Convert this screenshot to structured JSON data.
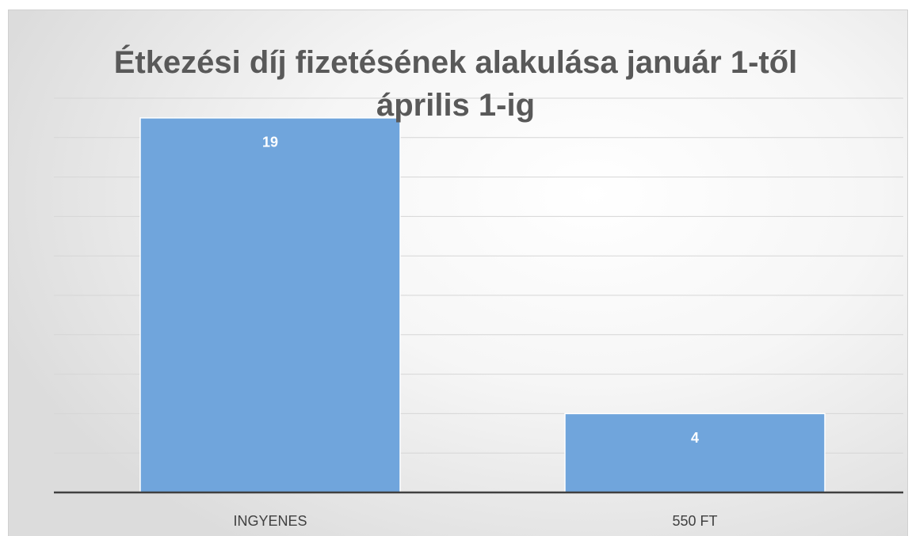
{
  "chart_data": {
    "type": "bar",
    "title": "Étkezési díj fizetésének alakulása január 1-től április 1-ig",
    "categories": [
      "INGYENES",
      "550 FT"
    ],
    "values": [
      19,
      4
    ],
    "color": "#70a5dc",
    "ylim": [
      0,
      20
    ],
    "yticks": [
      0,
      2,
      4,
      6,
      8,
      10,
      12,
      14,
      16,
      18,
      20
    ],
    "grid": true
  }
}
